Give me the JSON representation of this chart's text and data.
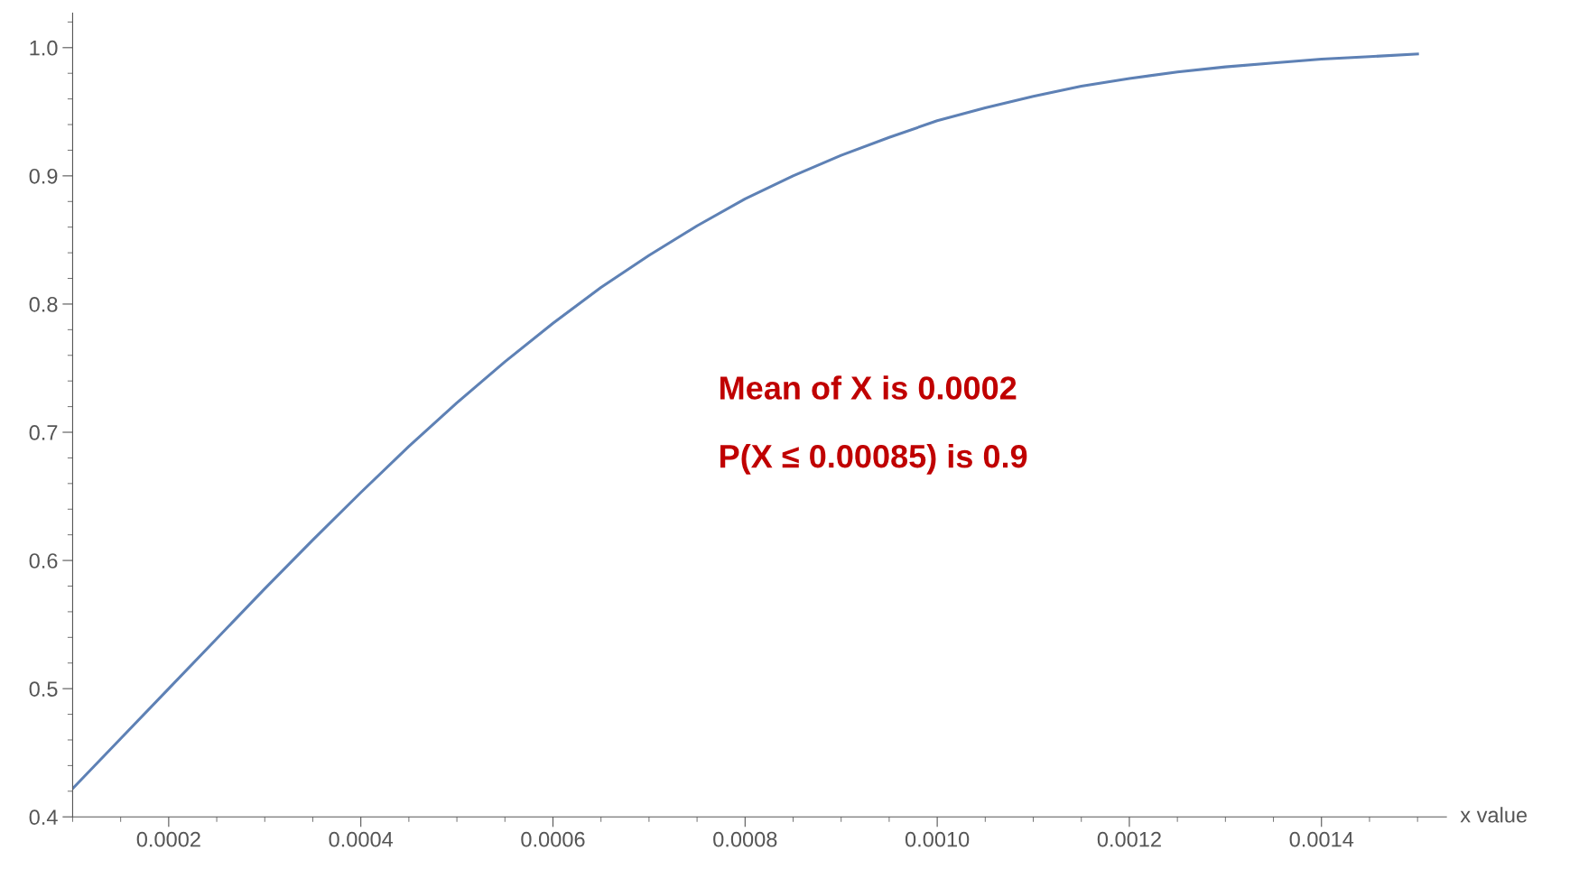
{
  "chart_data": {
    "type": "line",
    "xlabel": "x value",
    "x": [
      0.0001,
      0.00015,
      0.0002,
      0.00025,
      0.0003,
      0.00035,
      0.0004,
      0.00045,
      0.0005,
      0.00055,
      0.0006,
      0.00065,
      0.0007,
      0.00075,
      0.0008,
      0.00085,
      0.0009,
      0.00095,
      0.001,
      0.00105,
      0.0011,
      0.00115,
      0.0012,
      0.00125,
      0.0013,
      0.00135,
      0.0014,
      0.00145,
      0.0015
    ],
    "series": [
      {
        "color": "#5e81b5",
        "values": [
          0.422,
          0.461,
          0.5,
          0.539,
          0.578,
          0.616,
          0.653,
          0.689,
          0.723,
          0.755,
          0.785,
          0.813,
          0.838,
          0.861,
          0.882,
          0.9,
          0.916,
          0.93,
          0.943,
          0.953,
          0.962,
          0.97,
          0.976,
          0.981,
          0.985,
          0.988,
          0.991,
          0.993,
          0.995
        ]
      }
    ],
    "xlim": [
      0.0001,
      0.00153
    ],
    "ylim": [
      0.4,
      1.027
    ],
    "xticks": [
      0.0002,
      0.0004,
      0.0006,
      0.0008,
      {
        "value": 0.001,
        "label": "0.0010"
      },
      0.0012,
      0.0014
    ],
    "yticks": [
      0.4,
      0.5,
      0.6,
      0.7,
      0.8,
      0.9,
      {
        "value": 1,
        "label": "1.0"
      }
    ],
    "annotations": [
      "Mean of X is 0.0002",
      "P(X ≤ 0.00085) is 0.9"
    ],
    "grid": false,
    "legend": false,
    "marker": "none",
    "line_style": "solid"
  }
}
